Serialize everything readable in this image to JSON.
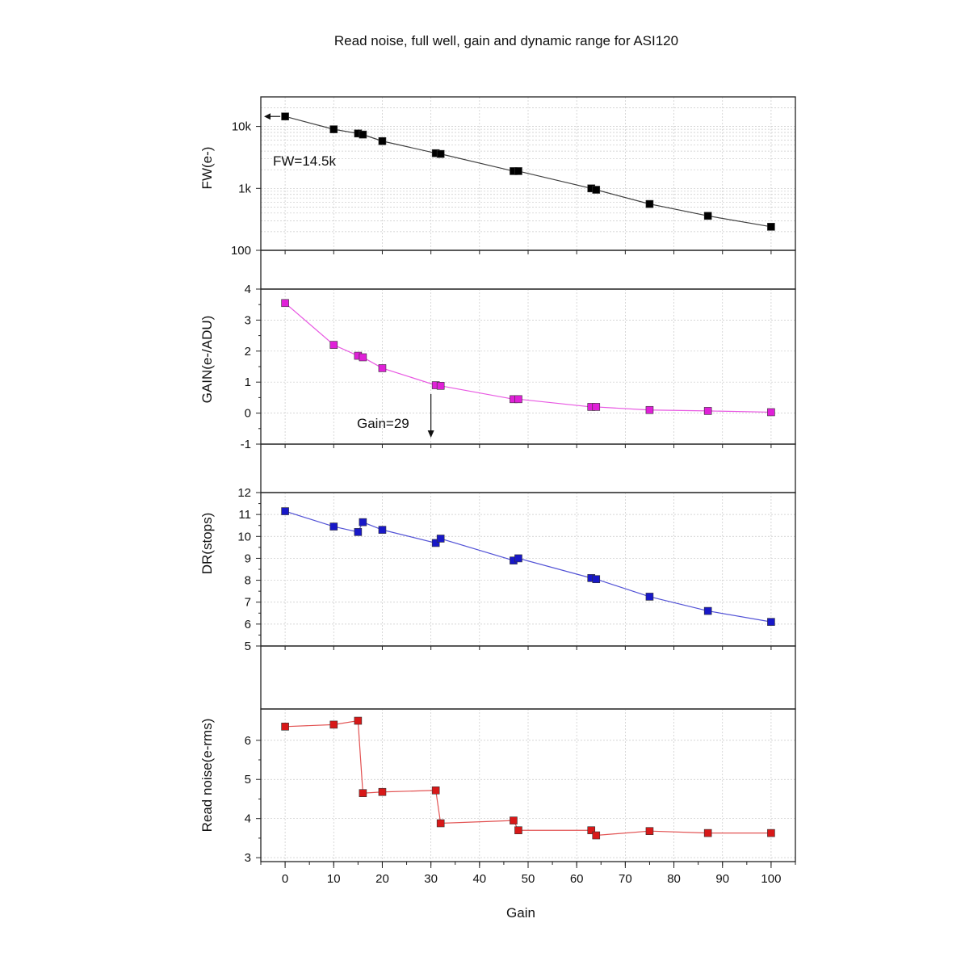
{
  "chart_data": {
    "type": "scatter",
    "title": "Read noise, full well, gain and dynamic range for ASI120",
    "xlabel": "Gain",
    "xlim": [
      -5,
      105
    ],
    "xticks": [
      0,
      10,
      20,
      30,
      40,
      50,
      60,
      70,
      80,
      90,
      100
    ],
    "xtick_labels": [
      "0",
      "10",
      "20",
      "30",
      "40",
      "50",
      "60",
      "70",
      "80",
      "90",
      "100"
    ],
    "grid": true,
    "panels": [
      {
        "id": "fw",
        "ylabel": "FW(e-)",
        "yscale": "log",
        "ylim": [
          100,
          30000
        ],
        "yticks": [
          100,
          1000,
          10000
        ],
        "ytick_labels": [
          "100",
          "1k",
          "10k"
        ],
        "color": "#000000",
        "x": [
          0,
          10,
          15,
          16,
          20,
          31,
          32,
          47,
          48,
          63,
          64,
          75,
          87,
          100
        ],
        "y": [
          14500,
          9000,
          7700,
          7400,
          5800,
          3700,
          3600,
          1900,
          1900,
          1000,
          950,
          560,
          360,
          240
        ],
        "annotation": "FW=14.5k"
      },
      {
        "id": "gain",
        "ylabel": "GAIN(e-/ADU)",
        "yscale": "linear",
        "ylim": [
          -1,
          4
        ],
        "yticks": [
          -1,
          0,
          1,
          2,
          3,
          4
        ],
        "ytick_labels": [
          "-1",
          "0",
          "1",
          "2",
          "3",
          "4"
        ],
        "color": "#e020d8",
        "x": [
          0,
          10,
          15,
          16,
          20,
          31,
          32,
          47,
          48,
          63,
          64,
          75,
          87,
          100
        ],
        "y": [
          3.55,
          2.2,
          1.85,
          1.8,
          1.45,
          0.9,
          0.88,
          0.45,
          0.45,
          0.2,
          0.2,
          0.1,
          0.07,
          0.03
        ],
        "annotation": "Gain=29"
      },
      {
        "id": "dr",
        "ylabel": "DR(stops)",
        "yscale": "linear",
        "ylim": [
          5,
          12
        ],
        "yticks": [
          5,
          6,
          7,
          8,
          9,
          10,
          11,
          12
        ],
        "ytick_labels": [
          "5",
          "6",
          "7",
          "8",
          "9",
          "10",
          "11",
          "12"
        ],
        "color": "#1818c8",
        "x": [
          0,
          10,
          15,
          16,
          20,
          31,
          32,
          47,
          48,
          63,
          64,
          75,
          87,
          100
        ],
        "y": [
          11.15,
          10.45,
          10.2,
          10.65,
          10.3,
          9.7,
          9.9,
          8.9,
          9.0,
          8.1,
          8.05,
          7.25,
          6.6,
          6.1
        ]
      },
      {
        "id": "rn",
        "ylabel": "Read noise(e-rms)",
        "yscale": "linear",
        "ylim": [
          2.9,
          6.8
        ],
        "yticks": [
          3,
          4,
          5,
          6
        ],
        "ytick_labels": [
          "3",
          "4",
          "5",
          "6"
        ],
        "color": "#d81818",
        "x": [
          0,
          10,
          15,
          16,
          20,
          31,
          32,
          47,
          48,
          63,
          64,
          75,
          87,
          100
        ],
        "y": [
          6.35,
          6.4,
          6.5,
          4.65,
          4.68,
          4.72,
          3.88,
          3.95,
          3.7,
          3.7,
          3.57,
          3.68,
          3.63,
          3.63
        ]
      }
    ]
  }
}
